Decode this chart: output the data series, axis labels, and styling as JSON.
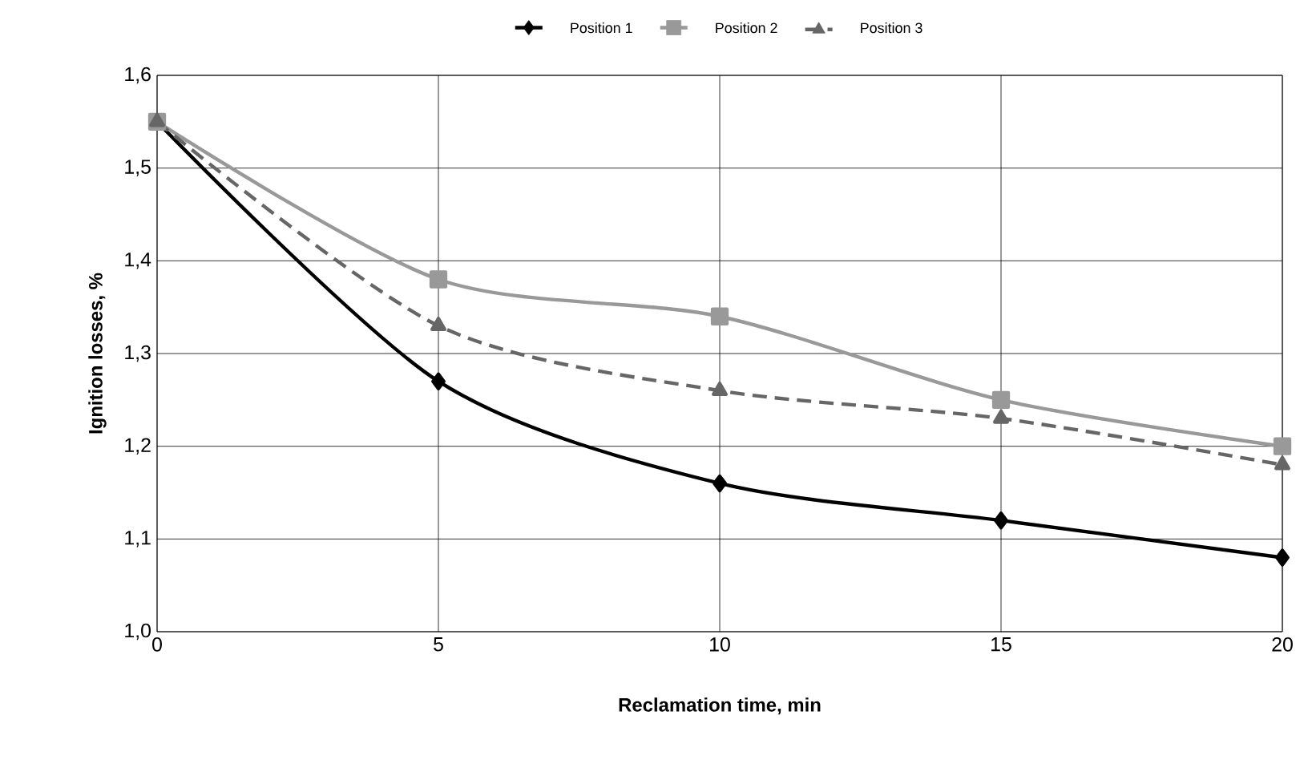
{
  "chart_data": {
    "type": "line",
    "xlabel": "Reclamation time, min",
    "ylabel": "Ignition losses, %",
    "x": [
      0,
      5,
      10,
      15,
      20
    ],
    "series": [
      {
        "name": "Position 1",
        "color": "#000000",
        "marker": "diamond",
        "line_style": "solid",
        "values": [
          1.55,
          1.27,
          1.16,
          1.12,
          1.08
        ]
      },
      {
        "name": "Position 2",
        "color": "#999999",
        "marker": "square",
        "line_style": "solid",
        "values": [
          1.55,
          1.38,
          1.34,
          1.25,
          1.2
        ]
      },
      {
        "name": "Position 3",
        "color": "#666666",
        "marker": "triangle",
        "line_style": "dashed",
        "values": [
          1.55,
          1.33,
          1.26,
          1.23,
          1.18
        ]
      }
    ],
    "xlim": [
      0,
      20
    ],
    "xticks": [
      0,
      5,
      10,
      15,
      20
    ],
    "ylim": [
      1.0,
      1.6
    ],
    "yticks": [
      {
        "value": 1.0,
        "label": "1,0"
      },
      {
        "value": 1.1,
        "label": "1,1"
      },
      {
        "value": 1.2,
        "label": "1,2"
      },
      {
        "value": 1.3,
        "label": "1,3"
      },
      {
        "value": 1.4,
        "label": "1,4"
      },
      {
        "value": 1.5,
        "label": "1,5"
      },
      {
        "value": 1.6,
        "label": "1,6"
      }
    ],
    "grid": true,
    "legend": "top"
  }
}
